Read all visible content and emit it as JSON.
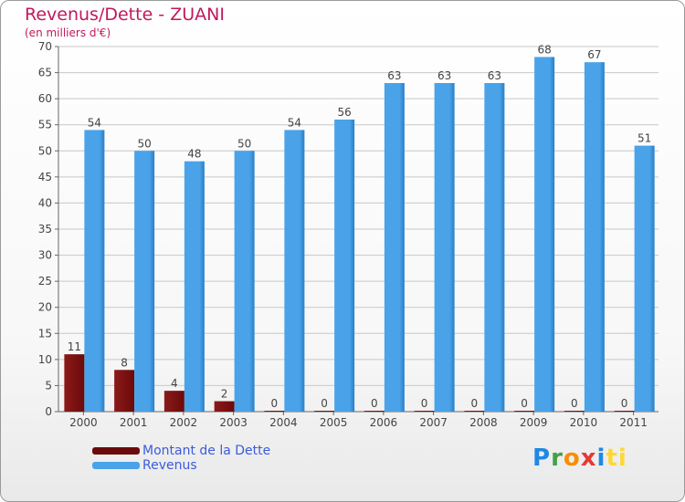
{
  "header": {
    "title": "Revenus/Dette - ZUANI",
    "subtitle": "(en milliers d'€)"
  },
  "legend": {
    "debt_label": "Montant de la Dette",
    "revenue_label": "Revenus"
  },
  "logo": {
    "letters": [
      "P",
      "r",
      "o",
      "x",
      "i",
      "ti"
    ]
  },
  "colors": {
    "debt": "#6b0a0a",
    "debt_light": "#8b1a1a",
    "revenue": "#4aa3e8",
    "revenue_dark": "#2b7fc7",
    "label": "#444444",
    "accent": "#c2185b"
  },
  "chart_data": {
    "type": "bar",
    "title": "Revenus/Dette - ZUANI",
    "subtitle": "(en milliers d'€)",
    "categories": [
      "2000",
      "2001",
      "2002",
      "2003",
      "2004",
      "2005",
      "2006",
      "2007",
      "2008",
      "2009",
      "2010",
      "2011"
    ],
    "series": [
      {
        "name": "Montant de la Dette",
        "values": [
          11,
          8,
          4,
          2,
          0,
          0,
          0,
          0,
          0,
          0,
          0,
          0
        ]
      },
      {
        "name": "Revenus",
        "values": [
          54,
          50,
          48,
          50,
          54,
          56,
          63,
          63,
          63,
          68,
          67,
          51
        ]
      }
    ],
    "ylim": [
      0,
      70
    ],
    "yticks": [
      0,
      5,
      10,
      15,
      20,
      25,
      30,
      35,
      40,
      45,
      50,
      55,
      60,
      65,
      70
    ],
    "grid": true,
    "legend_position": "bottom-left"
  }
}
